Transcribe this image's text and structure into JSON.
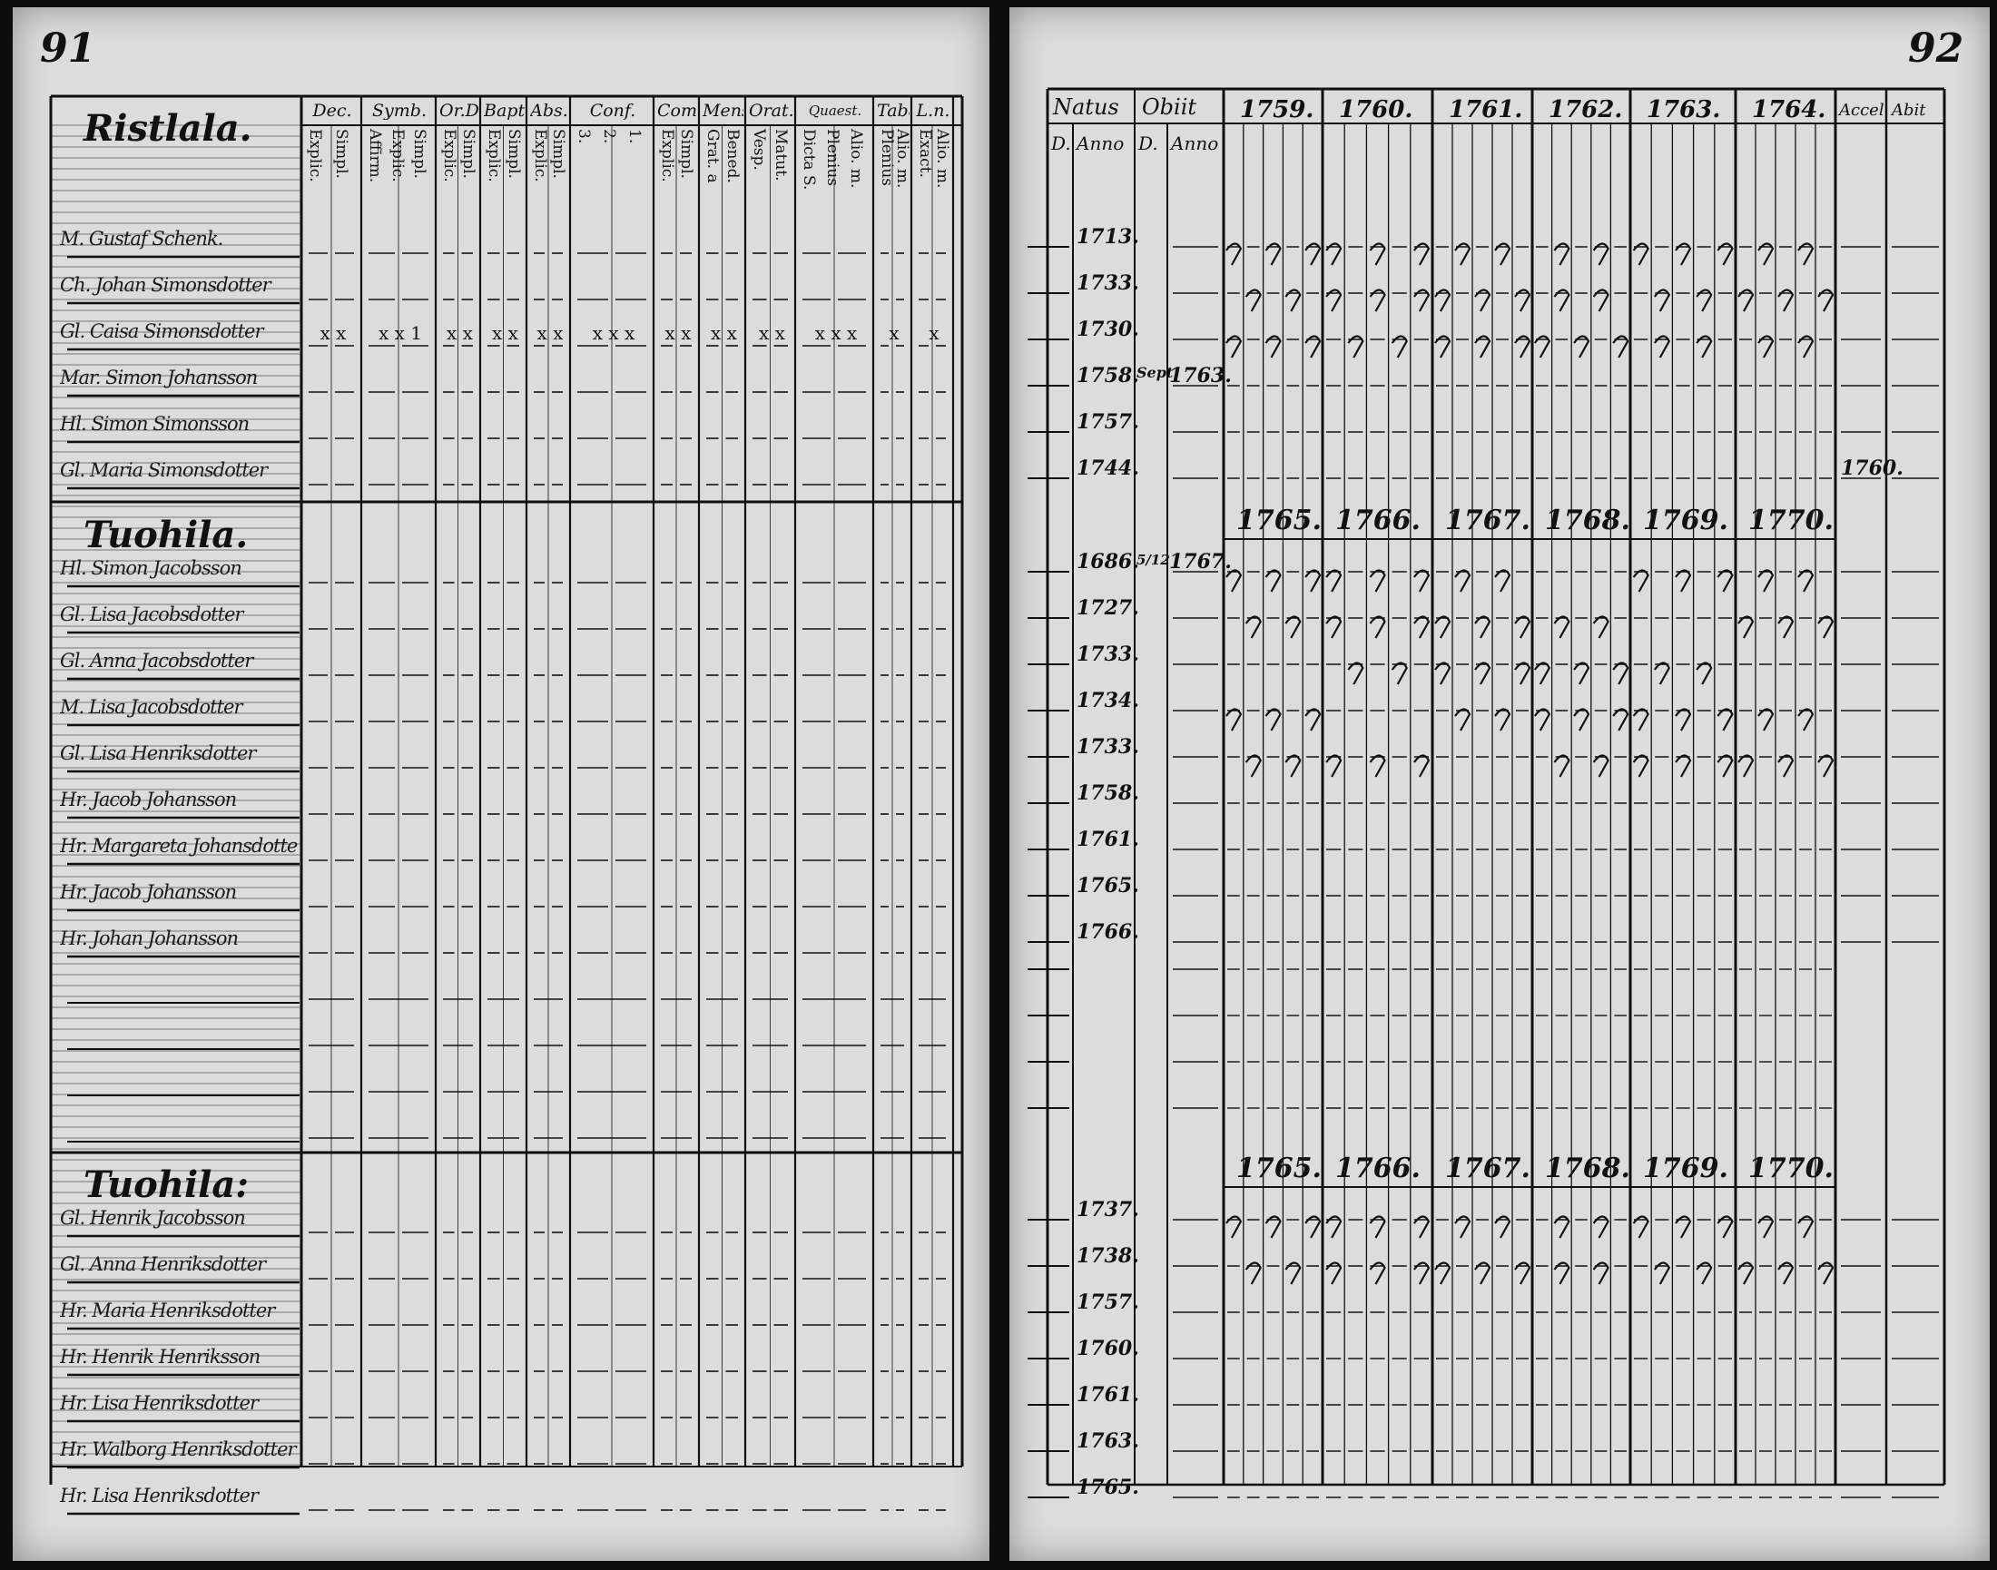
{
  "left_page": {
    "page_number": "91",
    "columns": [
      "Dec.",
      "Symb.",
      "Or.D",
      "Bapt.",
      "Abs.",
      "Conf.",
      "Com.D",
      "Mens.",
      "Orat.",
      "Quaest.",
      "Taba",
      "L.n."
    ],
    "subcolumns": [
      "Explic.\nSimpl.",
      "Affirm.\nExplic.\nSimpl.",
      "Explic.\nSimpl.",
      "Explic.\nSimpl.",
      "Explic.\nSimpl.",
      "3.\n2.\n1.",
      "Explic.\nSimpl.",
      "Grat. a\nBened.",
      "Vesp.\nMatut.",
      "Dicta S.\nPlenius\nAlio. m.",
      "Plenius\nAlio. m.",
      "Exact.\nAlio. m."
    ],
    "sections": [
      {
        "title": "Ristlala.",
        "names": [
          "M. Gustaf Schenk.",
          "Ch. Johan Simonsdotter",
          "Gl. Caisa Simonsdotter",
          "Mar. Simon Johansson",
          "Hl. Simon Simonsson",
          "Gl. Maria Simonsdotter"
        ],
        "marks": [
          "x x",
          "x x 1",
          "x x",
          "x x",
          "x x",
          "x x x",
          "x x",
          "x x",
          "x x",
          "x x x",
          "x",
          "x"
        ]
      },
      {
        "title": "Tuohila.",
        "names": [
          "Hl. Simon Jacobsson",
          "Gl. Lisa Jacobsdotter",
          "Gl. Anna Jacobsdotter",
          "M. Lisa Jacobsdotter",
          "Gl. Lisa Henriksdotter",
          "Hr. Jacob Johansson",
          "Hr. Margareta Johansdotter",
          "Hr. Jacob Johansson",
          "Hr. Johan Johansson"
        ],
        "marks": []
      },
      {
        "title": "Tuohila:",
        "names": [
          "Gl. Henrik Jacobsson",
          "Gl. Anna Henriksdotter",
          "Hr. Maria Henriksdotter",
          "Hr. Henrik Henriksson",
          "Hr. Lisa Henriksdotter",
          "Hr. Walborg Henriksdotter",
          "Hr. Lisa Henriksdotter"
        ],
        "marks": []
      }
    ]
  },
  "right_page": {
    "page_number": "92",
    "headers": {
      "natus": "Natus",
      "obiit": "Obiit",
      "d": "D.",
      "anno": "Anno",
      "accel": "Accel",
      "abit": "Abit"
    },
    "years_top": [
      "1759.",
      "1760.",
      "1761.",
      "1762.",
      "1763.",
      "1764."
    ],
    "years_mid": [
      "1765.",
      "1766.",
      "1767.",
      "1768.",
      "1769.",
      "1770."
    ],
    "years_low": [
      "1765.",
      "1766.",
      "1767.",
      "1768.",
      "1769.",
      "1770."
    ],
    "section1": {
      "born_years": [
        "1713.",
        "1733.",
        "1730.",
        "1758.",
        "1757.",
        "1744."
      ],
      "death": {
        "d": "Sept",
        "anno": "1763."
      },
      "accel_note": "1760."
    },
    "section2": {
      "born_years": [
        "1686.",
        "1727.",
        "1733.",
        "1734.",
        "1733.",
        "1758.",
        "1761.",
        "1765.",
        "1766."
      ],
      "death": {
        "d": "5/12",
        "anno": "1767."
      }
    },
    "section3": {
      "born_years": [
        "1737.",
        "1738.",
        "1757.",
        "1760.",
        "1761.",
        "1763.",
        "1765."
      ]
    }
  }
}
